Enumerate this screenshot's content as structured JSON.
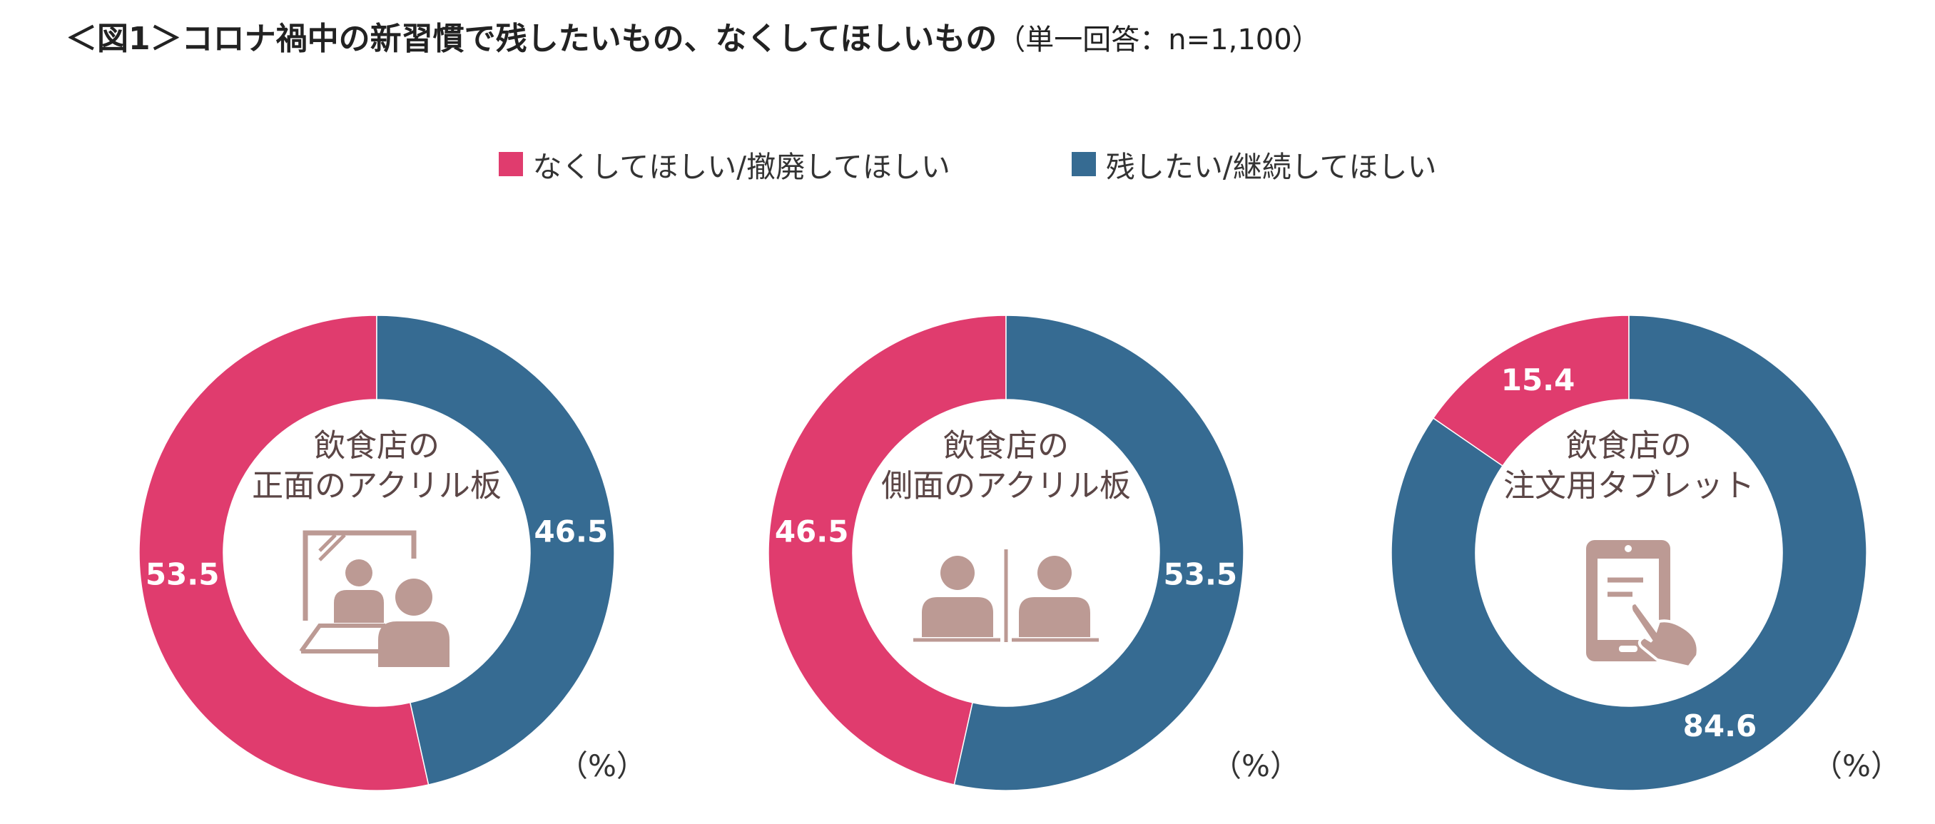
{
  "title": {
    "main": "＜図1＞コロナ禍中の新習慣で残したいもの、なくしてほしいもの",
    "note": "（単一回答：n=1,100）"
  },
  "legend": [
    {
      "label": "なくしてほしい/撤廃してほしい",
      "color": "#E03C6E"
    },
    {
      "label": "残したい/継続してほしい",
      "color": "#366B92"
    }
  ],
  "unit_label": "（%）",
  "icon_color": "#BC9A94",
  "chart_data": [
    {
      "type": "pie",
      "center_lines": [
        "飲食店の",
        "正面のアクリル板"
      ],
      "icon": "acrylic-panel-front-icon",
      "slices": [
        {
          "name": "なくしてほしい/撤廃してほしい",
          "value": 53.5
        },
        {
          "name": "残したい/継続してほしい",
          "value": 46.5
        }
      ]
    },
    {
      "type": "pie",
      "center_lines": [
        "飲食店の",
        "側面のアクリル板"
      ],
      "icon": "acrylic-panel-side-icon",
      "slices": [
        {
          "name": "なくしてほしい/撤廃してほしい",
          "value": 46.5
        },
        {
          "name": "残したい/継続してほしい",
          "value": 53.5
        }
      ]
    },
    {
      "type": "pie",
      "center_lines": [
        "飲食店の",
        "注文用タブレット"
      ],
      "icon": "tablet-tap-icon",
      "slices": [
        {
          "name": "なくしてほしい/撤廃してほしい",
          "value": 15.4
        },
        {
          "name": "残したい/継続してほしい",
          "value": 84.6
        }
      ]
    }
  ]
}
